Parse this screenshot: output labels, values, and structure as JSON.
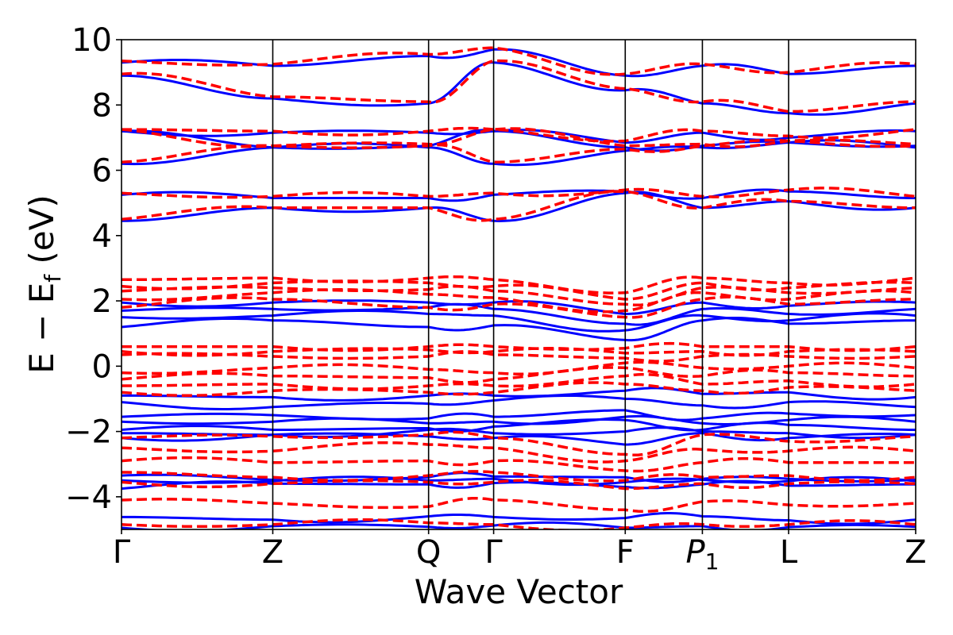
{
  "chart_data": {
    "type": "line",
    "title": "",
    "xlabel": "Wave Vector",
    "ylabel": "E − E",
    "ylabel_sub": "f",
    "ylabel_unit": " (eV)",
    "ylim": [
      -5,
      10
    ],
    "yticks": [
      -4,
      -2,
      0,
      2,
      4,
      6,
      8,
      10
    ],
    "ytick_labels": [
      "−4",
      "−2",
      "0",
      "2",
      "4",
      "6",
      "8",
      "10"
    ],
    "xlim": [
      0,
      5.25
    ],
    "kpoints": [
      {
        "label": "Γ",
        "position": 0.0
      },
      {
        "label": "Z",
        "position": 1.0
      },
      {
        "label": "Q",
        "position": 2.03
      },
      {
        "label": "Γ",
        "position": 2.46
      },
      {
        "label": "F",
        "position": 3.33
      },
      {
        "label": "P",
        "sub": "1",
        "position": 3.84
      },
      {
        "label": "L",
        "position": 4.41
      },
      {
        "label": "Z",
        "position": 5.25
      }
    ],
    "series": [
      {
        "name": "solid (blue)",
        "color": "#0000ff",
        "style": "solid",
        "bands": [
          [
            -4.95,
            -4.9,
            -4.92,
            -4.88,
            -4.95,
            -4.9,
            -4.93,
            -4.92
          ],
          [
            -4.62,
            -4.7,
            -4.6,
            -4.62,
            -4.65,
            -4.6,
            -4.72,
            -4.7
          ],
          [
            -3.75,
            -3.6,
            -3.62,
            -3.58,
            -3.7,
            -3.62,
            -3.66,
            -3.62
          ],
          [
            -3.5,
            -3.52,
            -3.5,
            -3.45,
            -3.55,
            -3.48,
            -3.52,
            -3.52
          ],
          [
            -3.35,
            -3.48,
            -3.4,
            -3.38,
            -3.4,
            -3.45,
            -3.45,
            -3.48
          ],
          [
            -2.2,
            -2.1,
            -2.15,
            -2.2,
            -2.4,
            -2.05,
            -2.2,
            -2.1
          ],
          [
            -2.05,
            -2.1,
            -1.95,
            -2.05,
            -2.0,
            -2.0,
            -2.05,
            -2.1
          ],
          [
            -1.95,
            -1.95,
            -1.9,
            -1.85,
            -1.65,
            -1.95,
            -1.8,
            -1.95
          ],
          [
            -1.7,
            -1.7,
            -1.75,
            -1.7,
            -1.55,
            -1.75,
            -1.65,
            -1.7
          ],
          [
            -1.55,
            -1.5,
            -1.6,
            -1.55,
            -1.35,
            -1.6,
            -1.45,
            -1.5
          ],
          [
            -1.1,
            -1.25,
            -1.15,
            -1.05,
            -1.0,
            -1.2,
            -1.1,
            -1.25
          ],
          [
            -0.9,
            -0.95,
            -0.9,
            -0.9,
            -0.75,
            -0.85,
            -0.8,
            -0.95
          ],
          [
            1.2,
            1.4,
            1.2,
            1.25,
            0.8,
            1.4,
            1.3,
            1.4
          ],
          [
            1.5,
            1.55,
            1.6,
            1.55,
            1.1,
            1.55,
            1.4,
            1.55
          ],
          [
            1.7,
            1.75,
            1.8,
            1.75,
            1.3,
            1.75,
            1.6,
            1.75
          ],
          [
            1.95,
            1.95,
            1.95,
            1.95,
            1.6,
            1.95,
            1.85,
            1.95
          ],
          [
            4.45,
            4.85,
            4.85,
            4.45,
            5.3,
            4.85,
            5.05,
            4.85
          ],
          [
            5.25,
            5.15,
            5.15,
            5.25,
            5.35,
            5.15,
            5.35,
            5.15
          ],
          [
            6.2,
            6.7,
            6.7,
            6.2,
            6.6,
            6.7,
            6.85,
            6.7
          ],
          [
            7.2,
            6.7,
            6.75,
            7.2,
            6.7,
            6.75,
            6.85,
            6.75
          ],
          [
            7.2,
            7.15,
            7.15,
            7.2,
            6.85,
            7.15,
            7.0,
            7.2
          ],
          [
            8.9,
            8.2,
            8.05,
            9.3,
            8.45,
            8.05,
            7.75,
            8.05
          ],
          [
            9.3,
            9.2,
            9.5,
            9.7,
            8.9,
            9.2,
            8.95,
            9.2
          ]
        ]
      },
      {
        "name": "dashed (red)",
        "color": "#ff0000",
        "style": "dashed",
        "bands": [
          [
            -4.85,
            -4.85,
            -4.8,
            -4.85,
            -4.95,
            -4.85,
            -4.85,
            -4.85
          ],
          [
            -4.1,
            -4.2,
            -4.3,
            -4.1,
            -4.4,
            -4.15,
            -4.25,
            -4.2
          ],
          [
            -3.55,
            -3.6,
            -3.55,
            -3.55,
            -3.75,
            -3.6,
            -3.6,
            -3.6
          ],
          [
            -3.25,
            -3.4,
            -3.35,
            -3.25,
            -3.5,
            -3.4,
            -3.35,
            -3.4
          ],
          [
            -2.9,
            -2.95,
            -2.9,
            -2.9,
            -3.2,
            -2.95,
            -2.95,
            -2.95
          ],
          [
            -2.5,
            -2.6,
            -2.4,
            -2.5,
            -2.9,
            -2.55,
            -2.6,
            -2.6
          ],
          [
            -2.2,
            -2.15,
            -2.1,
            -2.2,
            -2.7,
            -2.1,
            -2.3,
            -2.15
          ],
          [
            -0.8,
            -0.75,
            -0.8,
            -0.8,
            -0.55,
            -0.75,
            -0.65,
            -0.75
          ],
          [
            -0.6,
            -0.55,
            -0.6,
            -0.6,
            -0.3,
            -0.55,
            -0.45,
            -0.55
          ],
          [
            -0.4,
            -0.3,
            -0.35,
            -0.4,
            -0.05,
            -0.3,
            -0.2,
            -0.3
          ],
          [
            -0.2,
            -0.05,
            -0.1,
            -0.2,
            0.1,
            -0.05,
            0.0,
            -0.05
          ],
          [
            0.35,
            0.3,
            0.3,
            0.35,
            0.25,
            0.3,
            0.3,
            0.3
          ],
          [
            0.45,
            0.45,
            0.5,
            0.45,
            0.4,
            0.45,
            0.45,
            0.45
          ],
          [
            0.6,
            0.6,
            0.6,
            0.6,
            0.55,
            0.6,
            0.6,
            0.6
          ],
          [
            1.8,
            2.05,
            1.8,
            1.9,
            1.5,
            2.05,
            1.9,
            2.05
          ],
          [
            2.05,
            2.25,
            2.2,
            2.1,
            1.7,
            2.25,
            2.05,
            2.25
          ],
          [
            2.3,
            2.4,
            2.35,
            2.3,
            1.9,
            2.4,
            2.25,
            2.4
          ],
          [
            2.45,
            2.55,
            2.55,
            2.45,
            2.05,
            2.55,
            2.4,
            2.55
          ],
          [
            2.65,
            2.7,
            2.7,
            2.65,
            2.25,
            2.7,
            2.55,
            2.7
          ],
          [
            4.5,
            4.85,
            4.85,
            4.5,
            5.35,
            4.85,
            5.05,
            4.85
          ],
          [
            5.3,
            5.2,
            5.2,
            5.3,
            5.4,
            5.2,
            5.4,
            5.2
          ],
          [
            6.25,
            6.75,
            6.75,
            6.25,
            6.65,
            6.75,
            6.9,
            6.75
          ],
          [
            7.25,
            6.75,
            6.8,
            7.25,
            6.75,
            6.8,
            6.9,
            6.8
          ],
          [
            7.25,
            7.2,
            7.2,
            7.25,
            6.9,
            7.2,
            7.05,
            7.25
          ],
          [
            8.95,
            8.25,
            8.1,
            9.35,
            8.5,
            8.1,
            7.8,
            8.1
          ],
          [
            9.35,
            9.25,
            9.55,
            9.75,
            8.95,
            9.25,
            9.0,
            9.25
          ]
        ]
      }
    ]
  }
}
